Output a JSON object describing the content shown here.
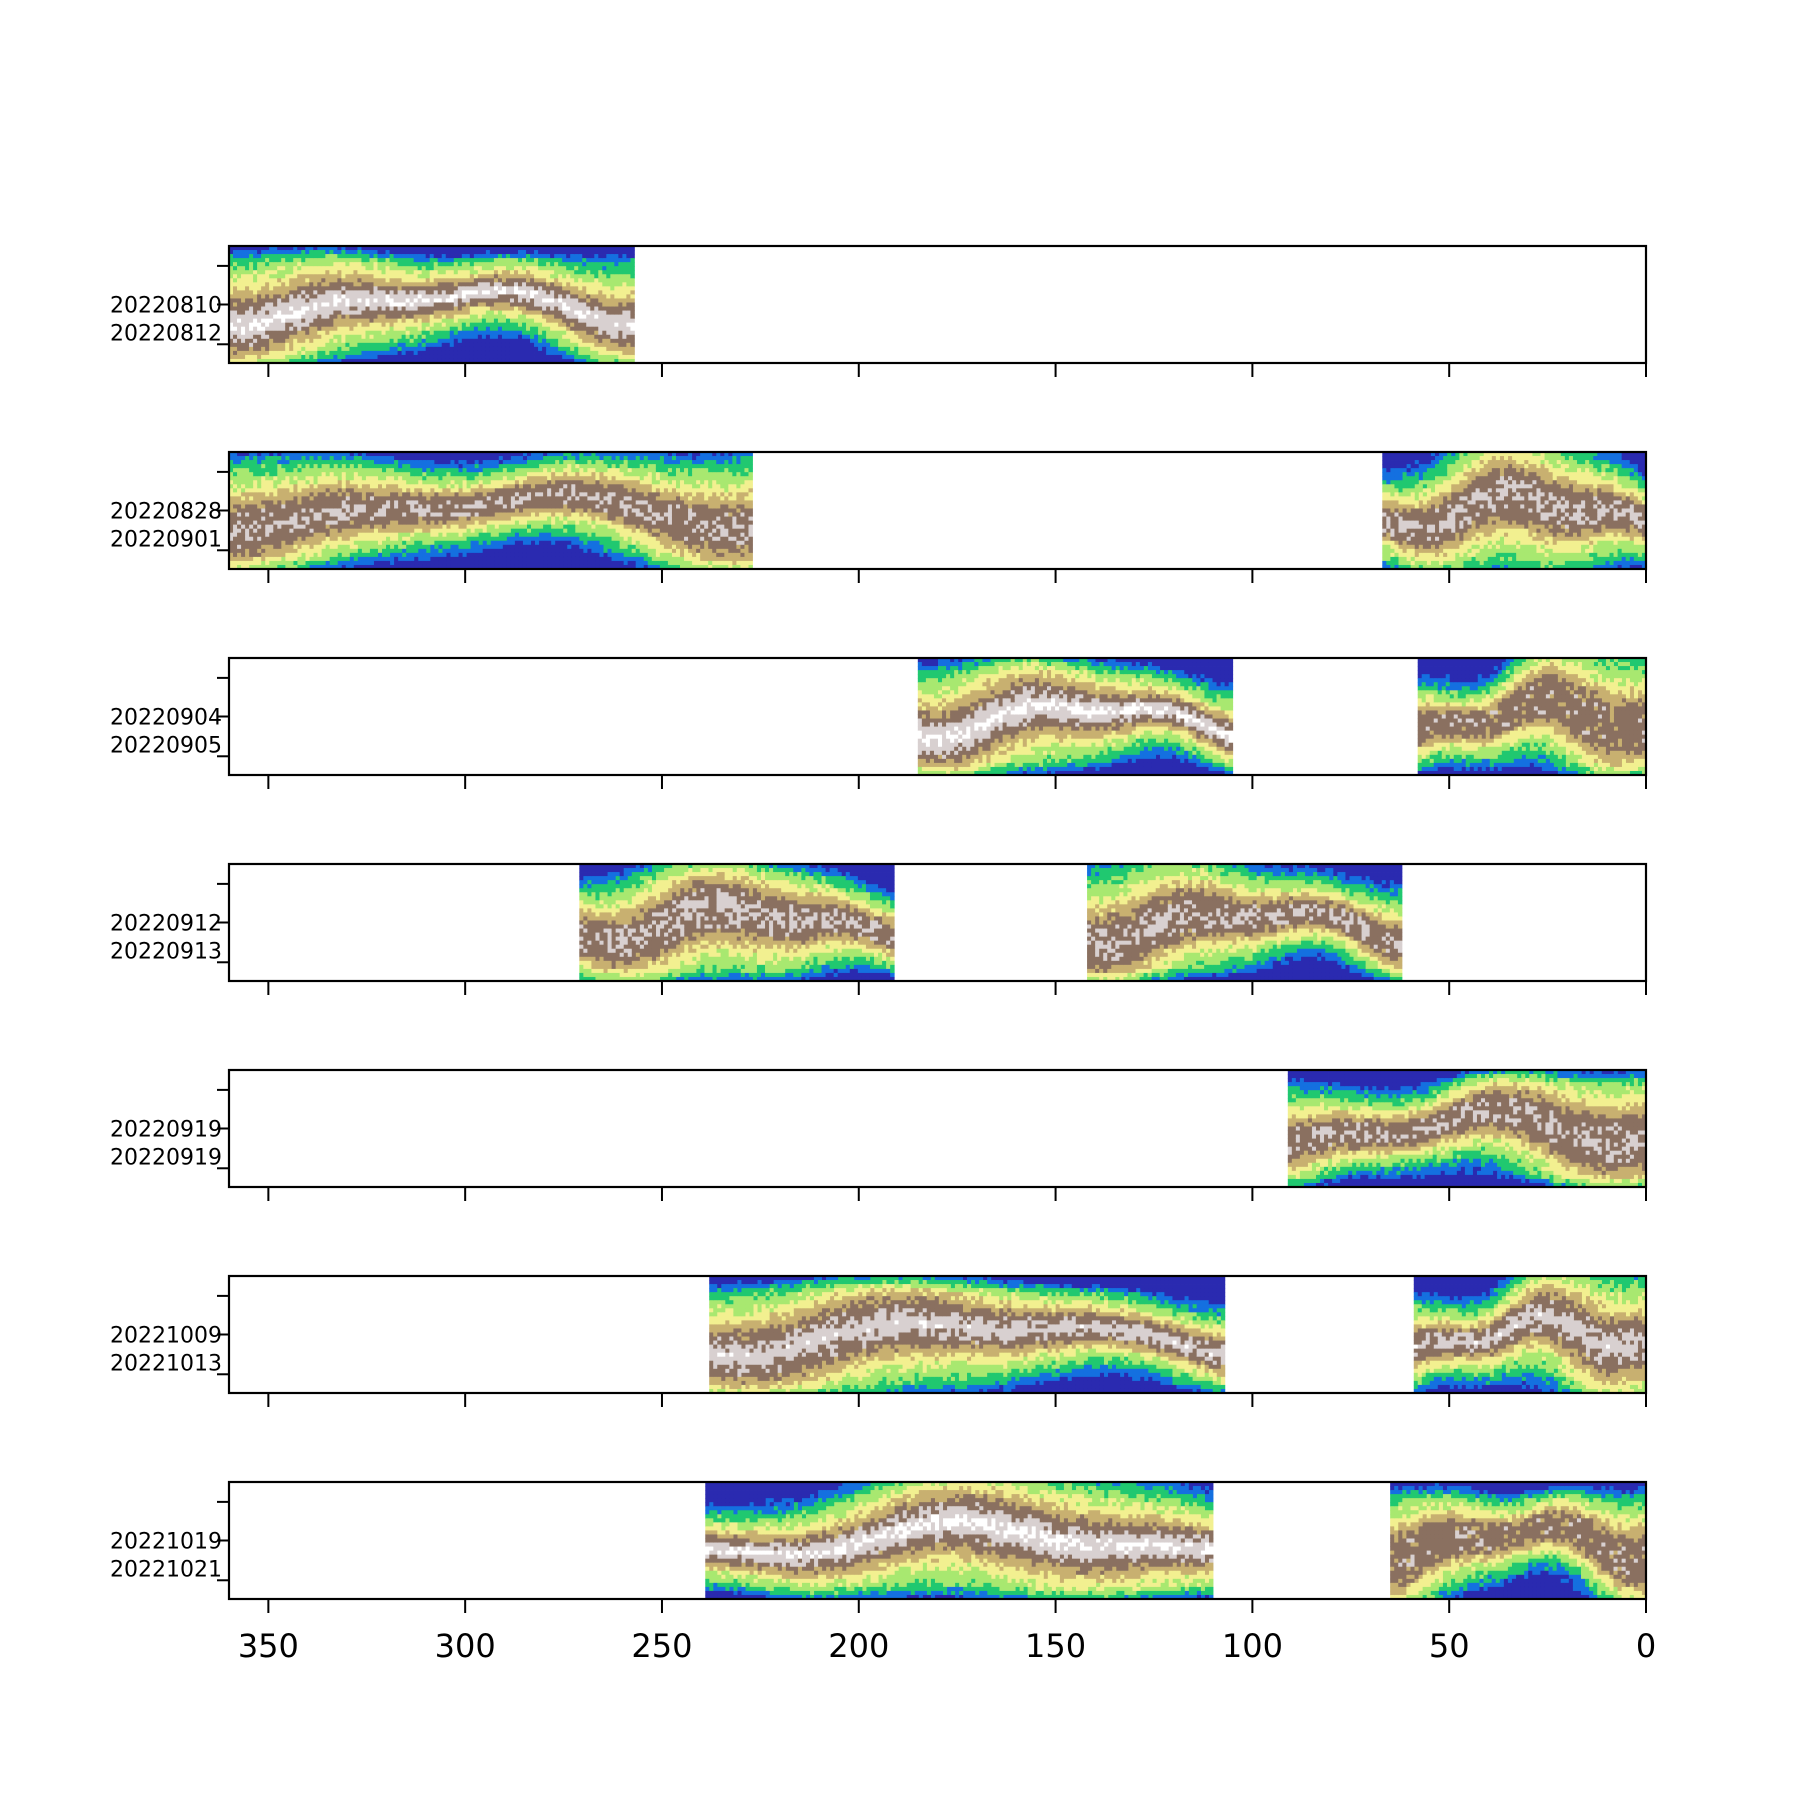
{
  "chart_data": {
    "type": "heatmap",
    "xlim": [
      360,
      0
    ],
    "x_ticks": [
      "350",
      "300",
      "250",
      "200",
      "150",
      "100",
      "50",
      "0"
    ],
    "x_tick_values": [
      350,
      300,
      250,
      200,
      150,
      100,
      50,
      0
    ],
    "colormap": [
      "#2a2ab0",
      "#1470e0",
      "#20c870",
      "#a8e870",
      "#f2f090",
      "#c8b070",
      "#8a7060",
      "#d8d0d0",
      "#ffffff"
    ],
    "panels": [
      {
        "dates": [
          "20220810",
          "20220812"
        ],
        "segments": [
          {
            "x": [
              360,
              257
            ],
            "seed": 11,
            "whitecenter": 0.85,
            "blue_top": 0.5,
            "blue_bottom": 0.4
          }
        ]
      },
      {
        "dates": [
          "20220828",
          "20220901"
        ],
        "segments": [
          {
            "x": [
              360,
              227
            ],
            "seed": 23,
            "whitecenter": 0.25,
            "blue_top": 0.15,
            "blue_bottom": 0.3
          },
          {
            "x": [
              67,
              0
            ],
            "seed": 29,
            "whitecenter": 0.35,
            "blue_top": 0.05,
            "blue_bottom": 0.1
          }
        ]
      },
      {
        "dates": [
          "20220904",
          "20220905"
        ],
        "segments": [
          {
            "x": [
              185,
              105
            ],
            "seed": 31,
            "whitecenter": 0.95,
            "blue_top": 0.3,
            "blue_bottom": 0.6
          },
          {
            "x": [
              58,
              0
            ],
            "seed": 37,
            "whitecenter": 0.0,
            "blue_top": 0.0,
            "blue_bottom": 0.3
          }
        ]
      },
      {
        "dates": [
          "20220912",
          "20220913"
        ],
        "segments": [
          {
            "x": [
              271,
              191
            ],
            "seed": 41,
            "whitecenter": 0.3,
            "blue_top": 0.3,
            "blue_bottom": 0.4
          },
          {
            "x": [
              142,
              62
            ],
            "seed": 43,
            "whitecenter": 0.3,
            "blue_top": 0.05,
            "blue_bottom": 0.6
          }
        ]
      },
      {
        "dates": [
          "20220919",
          "20220919"
        ],
        "segments": [
          {
            "x": [
              91,
              0
            ],
            "seed": 47,
            "whitecenter": 0.3,
            "blue_top": 0.45,
            "blue_bottom": 0.5
          }
        ]
      },
      {
        "dates": [
          "20221009",
          "20221013"
        ],
        "segments": [
          {
            "x": [
              238,
              107
            ],
            "seed": 53,
            "whitecenter": 0.6,
            "blue_top": 0.6,
            "blue_bottom": 0.25
          },
          {
            "x": [
              59,
              0
            ],
            "seed": 59,
            "whitecenter": 0.55,
            "blue_top": 0.05,
            "blue_bottom": 0.1
          }
        ]
      },
      {
        "dates": [
          "20221019",
          "20221021"
        ],
        "segments": [
          {
            "x": [
              239,
              110
            ],
            "seed": 61,
            "whitecenter": 0.9,
            "blue_top": 0.1,
            "blue_bottom": 0.45
          },
          {
            "x": [
              65,
              0
            ],
            "seed": 67,
            "whitecenter": 0.0,
            "blue_top": 0.5,
            "blue_bottom": 0.15
          }
        ]
      }
    ]
  }
}
